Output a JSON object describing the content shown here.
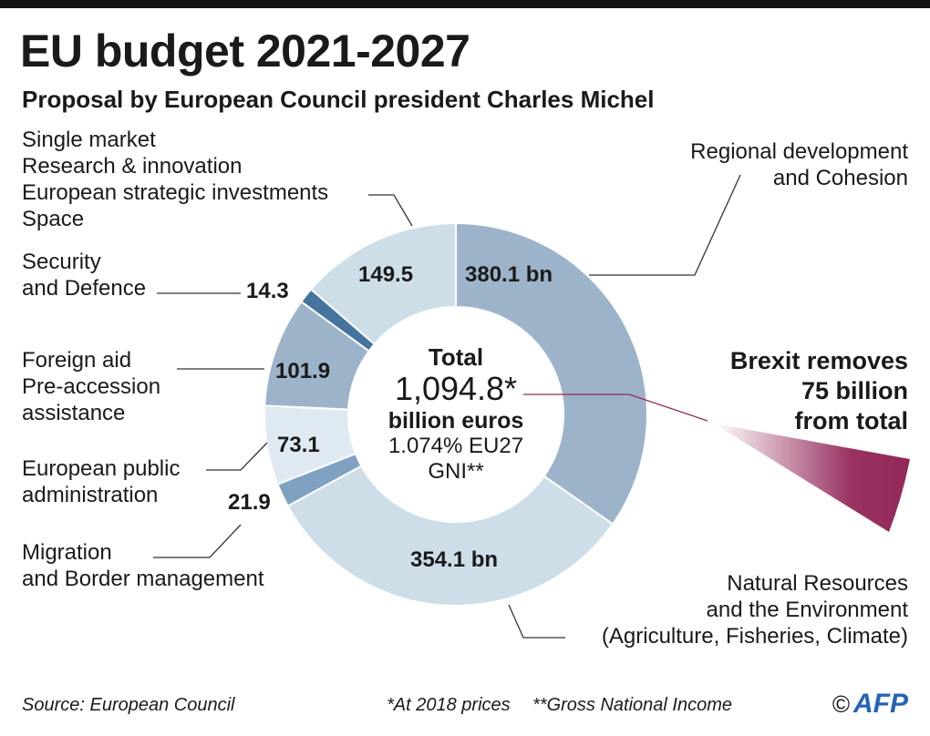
{
  "title": "EU budget 2021-2027",
  "subtitle": "Proposal by European Council president Charles Michel",
  "chart_data": {
    "type": "pie",
    "variant": "donut",
    "unit": "billion euros",
    "slices": [
      {
        "category": "Regional development and Cohesion",
        "value": 380.1,
        "value_label": "380.1 bn",
        "color": "#9db3ca"
      },
      {
        "category": "Natural Resources and the Environment (Agriculture, Fisheries, Climate)",
        "value": 354.1,
        "value_label": "354.1 bn",
        "color": "#cedee9"
      },
      {
        "category": "Migration and Border management",
        "value": 21.9,
        "value_label": "21.9",
        "color": "#7fa2c3"
      },
      {
        "category": "European public administration",
        "value": 73.1,
        "value_label": "73.1",
        "color": "#dfe9f1"
      },
      {
        "category": "Foreign aid Pre-accession assistance",
        "value": 101.9,
        "value_label": "101.9",
        "color": "#9db3ca"
      },
      {
        "category": "Security and Defence",
        "value": 14.3,
        "value_label": "14.3",
        "color": "#44749f"
      },
      {
        "category": "Single market Research & innovation European strategic investments Space",
        "value": 149.5,
        "value_label": "149.5",
        "color": "#cedee9"
      }
    ],
    "total": {
      "label": "Total",
      "value": "1,094.8*",
      "unit": "billion euros",
      "share": "1.074% EU27",
      "share_unit": "GNI**"
    },
    "annotation": {
      "lines": [
        "Brexit removes",
        "75 billion",
        "from total"
      ],
      "value": 75,
      "color": "#93285a"
    }
  },
  "labels": {
    "regional": [
      "Regional development",
      "and Cohesion"
    ],
    "natural": [
      "Natural Resources",
      "and the Environment",
      "(Agriculture, Fisheries, Climate)"
    ],
    "migration": [
      "Migration",
      "and Border management"
    ],
    "public_admin": [
      "European public",
      "administration"
    ],
    "foreign": [
      "Foreign aid",
      "Pre-accession",
      "assistance"
    ],
    "security": [
      "Security",
      "and Defence"
    ],
    "single_market": [
      "Single market",
      "Research & innovation",
      "European strategic investments",
      "Space"
    ]
  },
  "footer": {
    "source": "Source: European Council",
    "note1": "*At 2018 prices",
    "note2": "**Gross National Income",
    "copyright": "©",
    "logo": "AFP"
  }
}
